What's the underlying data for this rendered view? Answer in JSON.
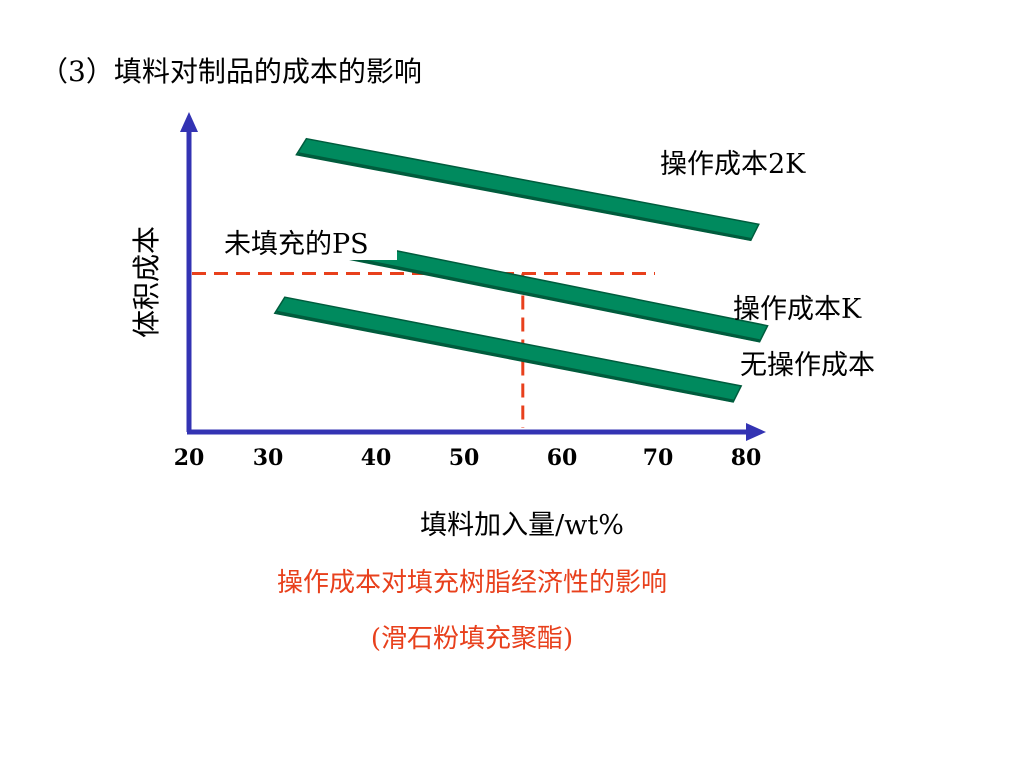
{
  "slide": {
    "title": "（3）填料对制品的成本的影响",
    "caption_line1": "操作成本对填充树脂经济性的影响",
    "caption_line2": "(滑石粉填充聚酯)"
  },
  "chart_data": {
    "type": "line",
    "xlabel": "填料加入量/wt%",
    "ylabel": "体积成本",
    "x_ticks": [
      20,
      30,
      40,
      50,
      60,
      70,
      80
    ],
    "xlim": [
      20,
      80
    ],
    "ylim": [
      0,
      100
    ],
    "series": [
      {
        "name": "操作成本2K",
        "x": [
          33,
          81
        ],
        "y": [
          90,
          63
        ]
      },
      {
        "name": "操作成本K",
        "x": [
          35,
          82
        ],
        "y": [
          59,
          31
        ]
      },
      {
        "name": "无操作成本",
        "x": [
          31,
          79
        ],
        "y": [
          40,
          12
        ]
      }
    ],
    "annotations": [
      {
        "text": "未填充的PS"
      }
    ],
    "reference": {
      "x": 56,
      "y": 50
    },
    "colors": {
      "axis": "#3333b3",
      "band": "#008a5e",
      "band_edge": "#005c3d",
      "reference": "#e8401c",
      "caption": "#e8401c"
    }
  }
}
